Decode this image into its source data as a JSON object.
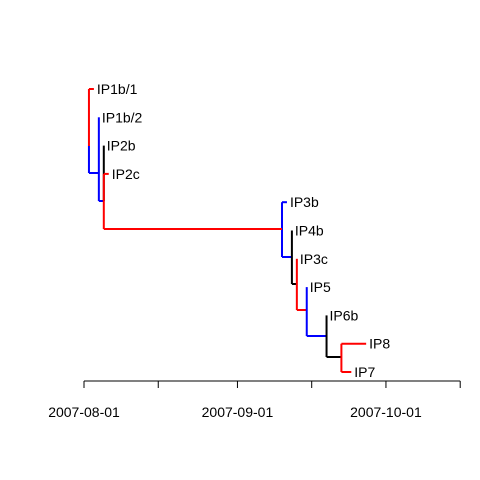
{
  "figure": {
    "type": "timed-phylogeny"
  },
  "axis": {
    "tick_dates": [
      "2007-07-31",
      "2007-08-15",
      "2007-08-31",
      "2007-09-15",
      "2007-09-30",
      "2007-10-15"
    ],
    "tick_labels": [
      "2007-08-01",
      "",
      "2007-09-01",
      "",
      "2007-10-01",
      ""
    ]
  },
  "colors": {
    "red": "#ff0000",
    "blue": "#0000ff",
    "black": "#000000"
  },
  "tips": [
    {
      "id": "IP1b_1",
      "label": "IP1b/1",
      "date": "2007-08-02"
    },
    {
      "id": "IP1b_2",
      "label": "IP1b/2",
      "date": "2007-08-03"
    },
    {
      "id": "IP2b",
      "label": "IP2b",
      "date": "2007-08-04"
    },
    {
      "id": "IP2c",
      "label": "IP2c",
      "date": "2007-08-05"
    },
    {
      "id": "IP3b",
      "label": "IP3b",
      "date": "2007-09-10"
    },
    {
      "id": "IP4b",
      "label": "IP4b",
      "date": "2007-09-11"
    },
    {
      "id": "IP3c",
      "label": "IP3c",
      "date": "2007-09-12"
    },
    {
      "id": "IP5",
      "label": "IP5",
      "date": "2007-09-14"
    },
    {
      "id": "IP6b",
      "label": "IP6b",
      "date": "2007-09-18"
    },
    {
      "id": "IP8",
      "label": "IP8",
      "date": "2007-09-26"
    },
    {
      "id": "IP7",
      "label": "IP7",
      "date": "2007-09-23"
    }
  ],
  "nodes": [
    {
      "id": "n1",
      "date": "2007-08-01",
      "children": [
        "IP1b_1",
        "n2"
      ],
      "colors": [
        "red",
        "blue"
      ]
    },
    {
      "id": "n2",
      "date": "2007-08-03",
      "children": [
        "IP1b_2",
        "n3"
      ],
      "colors": [
        "blue",
        "blue"
      ]
    },
    {
      "id": "n3",
      "date": "2007-08-04",
      "children": [
        "IP2b",
        "IP2c"
      ],
      "colors": [
        "black",
        "red"
      ]
    },
    {
      "id": "n4",
      "date": "2007-09-09",
      "children": [
        "IP3b",
        "n5"
      ],
      "colors": [
        "blue",
        "blue"
      ]
    },
    {
      "id": "n5",
      "date": "2007-09-11",
      "children": [
        "IP4b",
        "n6"
      ],
      "colors": [
        "black",
        "black"
      ]
    },
    {
      "id": "n6",
      "date": "2007-09-12",
      "children": [
        "IP3c",
        "n7"
      ],
      "colors": [
        "red",
        "red"
      ]
    },
    {
      "id": "n7",
      "date": "2007-09-14",
      "children": [
        "IP5",
        "n8"
      ],
      "colors": [
        "blue",
        "blue"
      ]
    },
    {
      "id": "n8",
      "date": "2007-09-18",
      "children": [
        "IP6b",
        "n9"
      ],
      "colors": [
        "black",
        "black"
      ]
    },
    {
      "id": "n9",
      "date": "2007-09-21",
      "children": [
        "IP8",
        "IP7"
      ],
      "colors": [
        "red",
        "red"
      ]
    }
  ],
  "links": [
    {
      "from": "n3",
      "to": "n4",
      "color": "red"
    }
  ]
}
